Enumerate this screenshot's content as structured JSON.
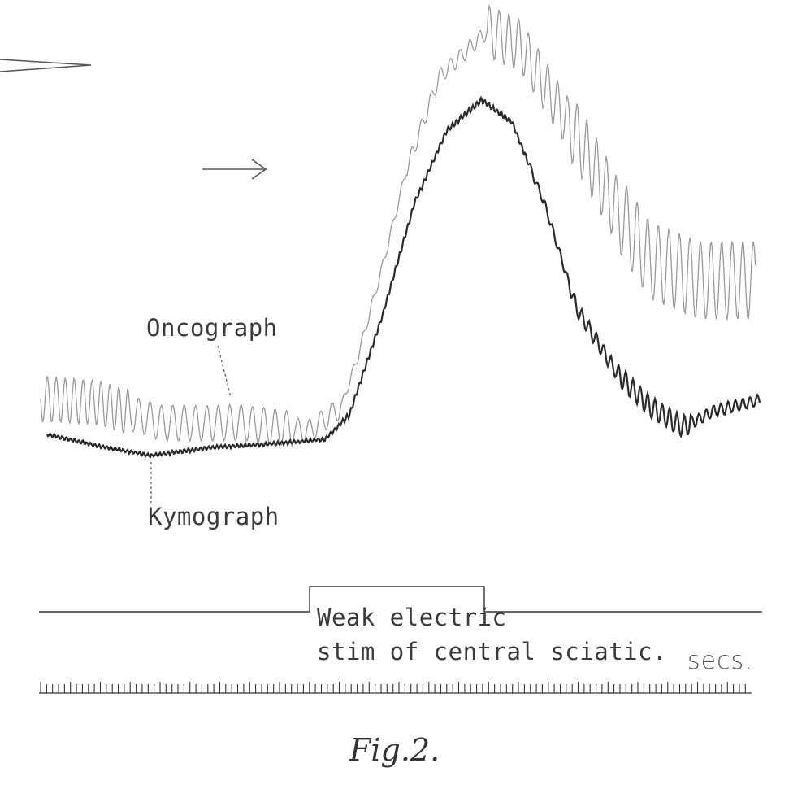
{
  "labels": {
    "oncograph": "Oncograph",
    "kymograph": "Kymograph",
    "stim_line1": "Weak electric",
    "stim_line2": "stim of central sciatic.",
    "secs": "secs.",
    "caption": "Fig.2."
  },
  "colors": {
    "oncograph_trace": "#9a9a9a",
    "kymograph_trace": "#2a2a2a",
    "ink": "#3a3a3a",
    "paper": "#ffffff"
  },
  "icons": [
    "arrow-right-icon",
    "pointer-wedge-icon"
  ]
}
